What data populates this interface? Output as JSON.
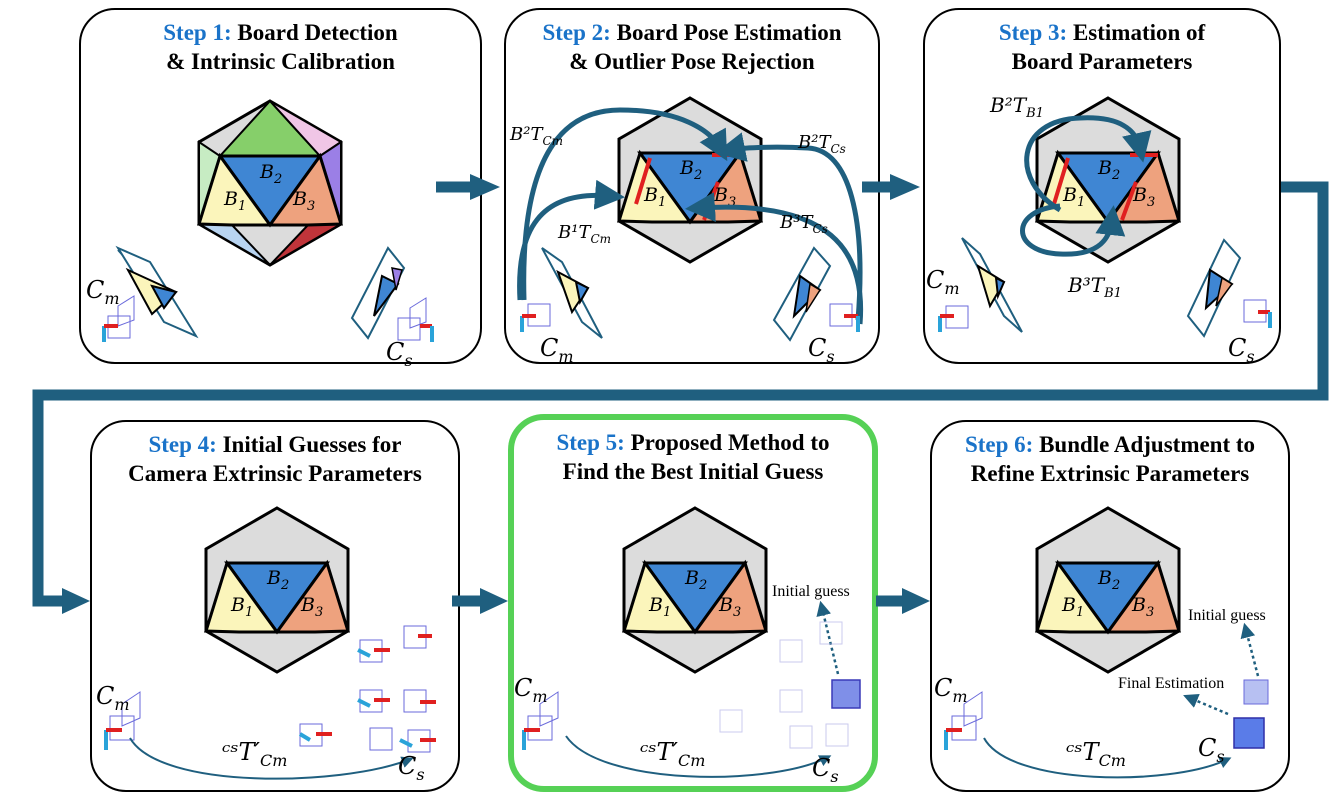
{
  "steps": [
    {
      "step": "Step 1:",
      "line1": "Board Detection",
      "line2": "& Intrinsic Calibration"
    },
    {
      "step": "Step 2:",
      "line1": "Board Pose Estimation",
      "line2": "& Outlier Pose Rejection"
    },
    {
      "step": "Step 3:",
      "line1": "Estimation of",
      "line2": "Board Parameters"
    },
    {
      "step": "Step 4:",
      "line1": "Initial Guesses for",
      "line2": "Camera Extrinsic Parameters"
    },
    {
      "step": "Step 5:",
      "line1": "Proposed Method to",
      "line2": "Find the Best Initial Guess"
    },
    {
      "step": "Step 6:",
      "line1": "Bundle Adjustment to",
      "line2": "Refine Extrinsic Parameters"
    }
  ],
  "labels": {
    "b1": "B",
    "b1_sub": "1",
    "b2": "B",
    "b2_sub": "2",
    "b3": "B",
    "b3_sub": "3",
    "cm": "C",
    "cm_sub": "m",
    "cs": "C",
    "cs_sub": "s",
    "t_b2_cm": "B2 T Cm",
    "t_b1_cm": "B1 T Cm",
    "t_b2_cs": "B2 T Cs",
    "t_b3_cs": "B3 T Cs",
    "t_b2_b1": "B2 T B1",
    "t_b3_b1": "B3 T B1",
    "t_cs_cm_prime": "Cs T' Cm",
    "t_cs_cm": "Cs T Cm",
    "initial_guess": "Initial guess",
    "final_estimation": "Final Estimation"
  },
  "colors": {
    "step_blue": "#1a73c9",
    "arrow": "#1f5f7f",
    "b1": "#fbf5bb",
    "b2": "#3f86d3",
    "b3": "#eea27e",
    "highlight": "#56d156"
  }
}
